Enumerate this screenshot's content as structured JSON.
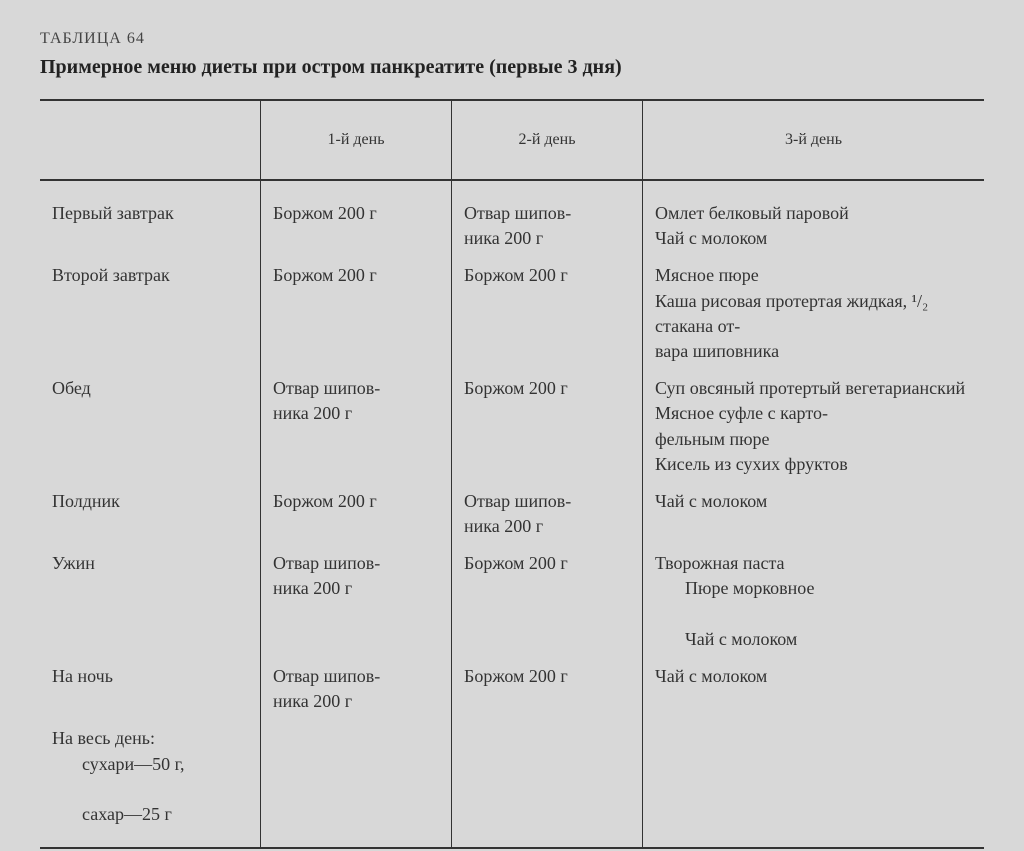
{
  "table_label": "ТАБЛИЦА 64",
  "table_title": "Примерное меню диеты при остром панкреатите (первые 3 дня)",
  "headers": {
    "meal": "",
    "day1": "1-й день",
    "day2": "2-й день",
    "day3": "3-й день"
  },
  "rows": [
    {
      "meal": "Первый завтрак",
      "day1": "Боржом 200 г",
      "day2": "Отвар шипов-\nника 200 г",
      "day3": "Омлет белковый паровой\nЧай с молоком"
    },
    {
      "meal": "Второй завтрак",
      "day1": "Боржом 200 г",
      "day2": "Боржом 200 г",
      "day3": "Мясное пюре\nКаша рисовая протертая жидкая, ¹/₂ стакана от-\nвара шиповника"
    },
    {
      "meal": "Обед",
      "day1": "Отвар шипов-\nника 200 г",
      "day2": "Боржом 200 г",
      "day3": "Суп овсяный протертый вегетарианский\nМясное суфле с карто-\nфельным пюре\nКисель из сухих фруктов"
    },
    {
      "meal": "Полдник",
      "day1": "Боржом 200 г",
      "day2": "Отвар шипов-\nника 200 г",
      "day3": "Чай с молоком"
    },
    {
      "meal": "Ужин",
      "day1": "Отвар шипов-\nника 200 г",
      "day2": "Боржом 200 г",
      "day3": "Творожная паста\n  Пюре морковное\n  Чай с молоком"
    },
    {
      "meal": "На ночь",
      "day1": "Отвар шипов-\nника 200 г",
      "day2": "Боржом 200 г",
      "day3": "Чай с молоком"
    },
    {
      "meal": "На весь день:\n  сухари—50 г,\n  сахар—25 г",
      "day1": "",
      "day2": "",
      "day3": ""
    }
  ],
  "styling": {
    "background_color": "#d8d8d8",
    "text_color": "#333",
    "border_color": "#333",
    "font_family": "Georgia, serif",
    "title_fontsize": 20,
    "label_fontsize": 16,
    "body_fontsize": 18,
    "header_fontsize": 16,
    "col_widths": {
      "meal": 200,
      "day1": 170,
      "day2": 170,
      "day3": "auto"
    }
  }
}
